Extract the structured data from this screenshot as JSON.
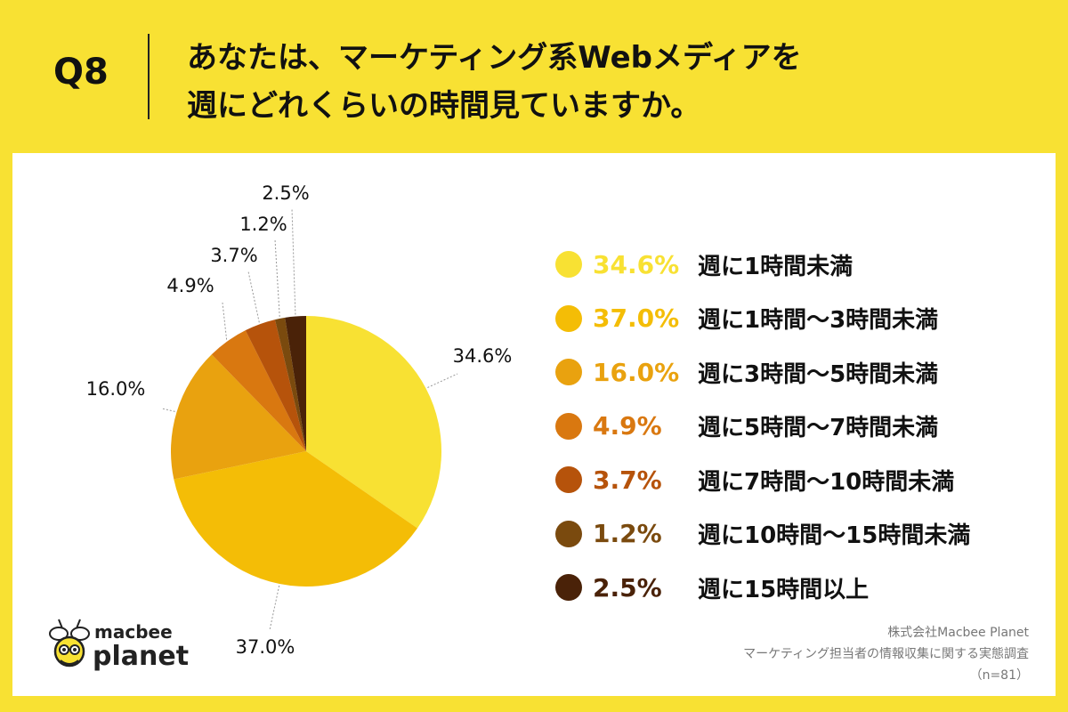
{
  "header": {
    "q_number": "Q8",
    "question_line1": "あなたは、マーケティング系Webメディアを",
    "question_line2": "週にどれくらいの時間見ていますか。"
  },
  "colors": {
    "background": "#f8e133",
    "card": "#ffffff",
    "slices": [
      "#f8e133",
      "#f4bd06",
      "#e9a20f",
      "#d97810",
      "#b6530b",
      "#7a4a0e",
      "#4a2208"
    ]
  },
  "chart_data": {
    "type": "pie",
    "categories": [
      "週に1時間未満",
      "週に1時間〜3時間未満",
      "週に3時間〜5時間未満",
      "週に5時間〜7時間未満",
      "週に7時間〜10時間未満",
      "週に10時間〜15時間未満",
      "週に15時間以上"
    ],
    "values": [
      34.6,
      37.0,
      16.0,
      4.9,
      3.7,
      1.2,
      2.5
    ],
    "value_labels": [
      "34.6%",
      "37.0%",
      "16.0%",
      "4.9%",
      "3.7%",
      "1.2%",
      "2.5%"
    ],
    "start": "12 o'clock",
    "direction": "clockwise",
    "legend_placement": "right"
  },
  "logo": {
    "line1": "macbee",
    "line2": "planet"
  },
  "source": {
    "company": "株式会社Macbee Planet",
    "survey": "マーケティング担当者の情報収集に関する実態調査",
    "n": "（n=81）"
  }
}
